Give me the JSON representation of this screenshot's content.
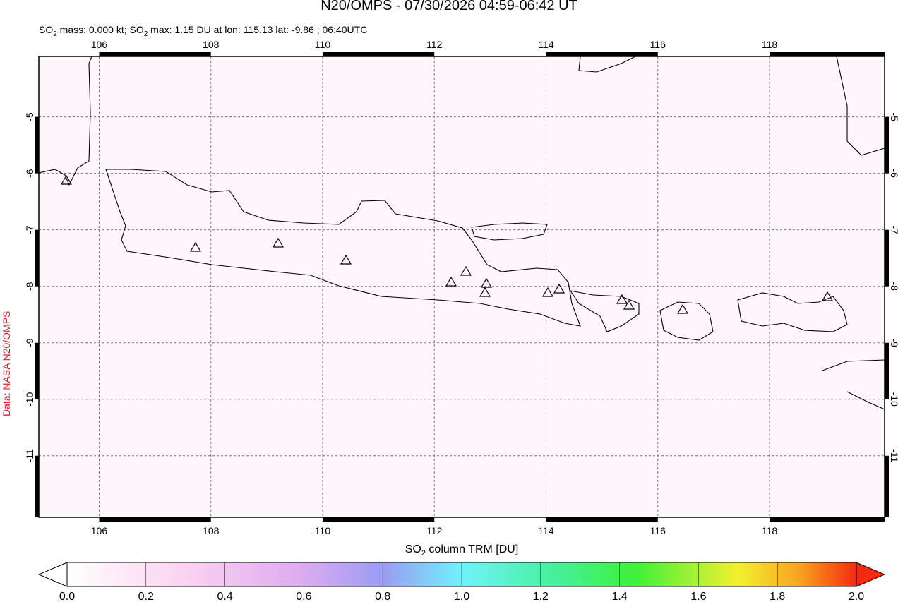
{
  "header": {
    "title": "N20/OMPS - 07/30/2026 04:59-06:42 UT",
    "subtitle_parts": [
      "SO",
      "2",
      " mass: 0.000 kt; SO",
      "2",
      " max: 1.15 DU at lon: 115.13 lat: -9.86 ; 06:40UTC"
    ]
  },
  "map": {
    "lon_range": [
      104.92,
      120.06
    ],
    "lat_range": [
      -12.09,
      -3.93
    ],
    "lon_ticks": [
      106,
      108,
      110,
      112,
      114,
      116,
      118
    ],
    "lat_ticks": [
      -5,
      -6,
      -7,
      -8,
      -9,
      -10,
      -11
    ]
  },
  "colorbar": {
    "label_parts": [
      "SO",
      "2",
      " column TRM [DU]"
    ],
    "range": [
      0,
      2
    ],
    "ticks": [
      {
        "value": 0,
        "label": "0.0"
      },
      {
        "value": 0.2,
        "label": "0.2"
      },
      {
        "value": 0.4,
        "label": "0.4"
      },
      {
        "value": 0.6,
        "label": "0.6"
      },
      {
        "value": 0.8,
        "label": "0.8"
      },
      {
        "value": 1,
        "label": "1.0"
      },
      {
        "value": 1.2,
        "label": "1.2"
      },
      {
        "value": 1.4,
        "label": "1.4"
      },
      {
        "value": 1.6,
        "label": "1.6"
      },
      {
        "value": 1.8,
        "label": "1.8"
      },
      {
        "value": 2,
        "label": "2.0"
      }
    ]
  },
  "credit": "Data: NASA N20/OMPS"
}
